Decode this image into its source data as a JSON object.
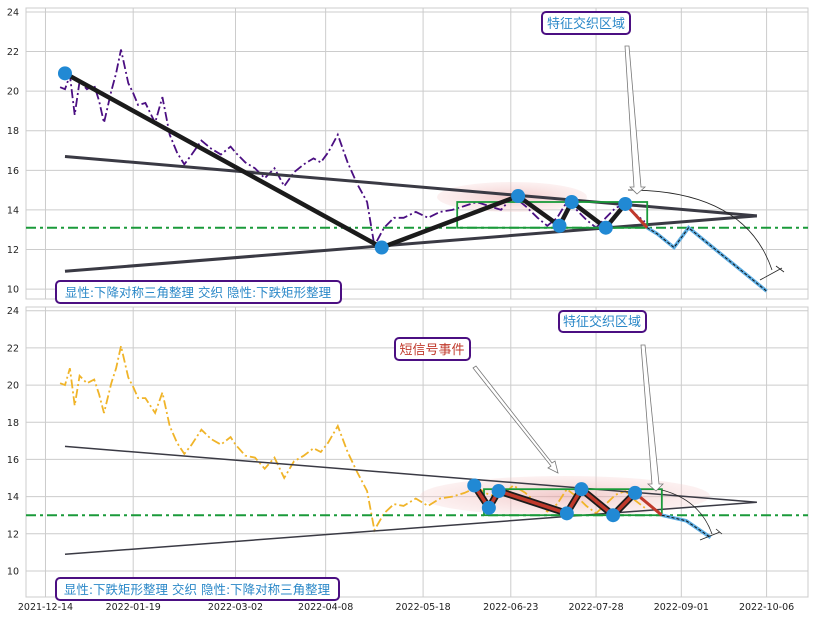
{
  "chart_data": {
    "type": "line",
    "shared_x_ticks": [
      "2021-12-14",
      "2022-01-19",
      "2022-03-02",
      "2022-04-08",
      "2022-05-18",
      "2022-06-23",
      "2022-07-28",
      "2022-09-01",
      "2022-10-06"
    ],
    "colors": {
      "grid": "#cccccc",
      "hline": "#1a9a3a",
      "box": "#1a9a3a",
      "pivot": "#2189d4",
      "annotation_text": "#2b88c8",
      "annotation_border": "#4b0f82",
      "signal_text": "#c0392b",
      "top_price": "#4b0f82",
      "bottom_price": "#f0b429"
    },
    "panels": [
      {
        "id": "top",
        "ylim": [
          9.5,
          24.2
        ],
        "y_ticks": [
          10,
          12,
          14,
          16,
          18,
          20,
          22,
          24
        ],
        "price_style": "purple-dashdot",
        "price_series": [
          [
            "2021-12-20",
            20.2
          ],
          [
            "2021-12-22",
            20.1
          ],
          [
            "2021-12-24",
            20.8
          ],
          [
            "2021-12-26",
            18.8
          ],
          [
            "2021-12-28",
            20.5
          ],
          [
            "2021-12-31",
            20.1
          ],
          [
            "2022-01-03",
            20.3
          ],
          [
            "2022-01-05",
            19.5
          ],
          [
            "2022-01-07",
            18.4
          ],
          [
            "2022-01-10",
            20.0
          ],
          [
            "2022-01-12",
            20.9
          ],
          [
            "2022-01-14",
            22.1
          ],
          [
            "2022-01-17",
            20.4
          ],
          [
            "2022-01-19",
            19.9
          ],
          [
            "2022-01-21",
            19.3
          ],
          [
            "2022-01-24",
            19.4
          ],
          [
            "2022-01-26",
            18.9
          ],
          [
            "2022-01-28",
            18.4
          ],
          [
            "2022-01-31",
            19.7
          ],
          [
            "2022-02-03",
            17.8
          ],
          [
            "2022-02-06",
            16.9
          ],
          [
            "2022-02-09",
            16.3
          ],
          [
            "2022-02-12",
            16.8
          ],
          [
            "2022-02-16",
            17.5
          ],
          [
            "2022-02-20",
            17.1
          ],
          [
            "2022-02-24",
            16.8
          ],
          [
            "2022-02-28",
            17.2
          ],
          [
            "2022-03-02",
            16.9
          ],
          [
            "2022-03-06",
            16.4
          ],
          [
            "2022-03-10",
            16.1
          ],
          [
            "2022-03-14",
            15.6
          ],
          [
            "2022-03-18",
            16.1
          ],
          [
            "2022-03-22",
            15.2
          ],
          [
            "2022-03-26",
            15.9
          ],
          [
            "2022-03-30",
            16.3
          ],
          [
            "2022-04-03",
            16.6
          ],
          [
            "2022-04-06",
            16.4
          ],
          [
            "2022-04-09",
            16.9
          ],
          [
            "2022-04-13",
            17.8
          ],
          [
            "2022-04-17",
            16.4
          ],
          [
            "2022-04-21",
            15.3
          ],
          [
            "2022-04-25",
            14.4
          ],
          [
            "2022-04-28",
            12.2
          ],
          [
            "2022-05-02",
            13.1
          ],
          [
            "2022-05-06",
            13.6
          ],
          [
            "2022-05-10",
            13.6
          ],
          [
            "2022-05-15",
            13.9
          ],
          [
            "2022-05-20",
            13.6
          ],
          [
            "2022-05-25",
            13.9
          ],
          [
            "2022-05-30",
            14.0
          ],
          [
            "2022-06-04",
            14.2
          ],
          [
            "2022-06-09",
            14.4
          ],
          [
            "2022-06-14",
            14.2
          ],
          [
            "2022-06-19",
            14.0
          ],
          [
            "2022-06-24",
            14.7
          ],
          [
            "2022-06-29",
            14.2
          ],
          [
            "2022-07-04",
            13.6
          ],
          [
            "2022-07-08",
            13.2
          ],
          [
            "2022-07-12",
            13.6
          ],
          [
            "2022-07-16",
            14.4
          ],
          [
            "2022-07-20",
            14.0
          ],
          [
            "2022-07-24",
            13.5
          ],
          [
            "2022-07-28",
            13.1
          ],
          [
            "2022-08-01",
            13.6
          ],
          [
            "2022-08-05",
            14.1
          ],
          [
            "2022-08-09",
            14.3
          ],
          [
            "2022-08-13",
            13.8
          ],
          [
            "2022-08-17",
            13.4
          ]
        ],
        "upper_trendline": [
          [
            "2021-12-22",
            16.7
          ],
          [
            "2022-10-02",
            13.7
          ]
        ],
        "lower_trendline": [
          [
            "2021-12-22",
            10.9
          ],
          [
            "2022-10-02",
            13.7
          ]
        ],
        "horizontal_line": 13.1,
        "zigzag": [
          [
            "2021-12-22",
            20.9
          ],
          [
            "2022-05-01",
            12.1
          ],
          [
            "2022-06-26",
            14.7
          ],
          [
            "2022-07-13",
            13.2
          ],
          [
            "2022-07-18",
            14.4
          ],
          [
            "2022-08-01",
            13.1
          ],
          [
            "2022-08-09",
            14.3
          ]
        ],
        "box": {
          "x0": "2022-06-01",
          "x1": "2022-08-18",
          "y0": 13.1,
          "y1": 14.4
        },
        "highlight_segment": [
          [
            "2022-08-09",
            14.3
          ],
          [
            "2022-08-18",
            13.1
          ]
        ],
        "projection": [
          [
            "2022-08-18",
            13.1
          ],
          [
            "2022-08-22",
            12.8
          ],
          [
            "2022-08-29",
            12.1
          ],
          [
            "2022-09-04",
            13.1
          ],
          [
            "2022-10-06",
            9.9
          ]
        ],
        "annotations": [
          {
            "text": "显性:下降对称三角整理 交织 隐性:下跌矩形整理",
            "position": "bottom-left"
          },
          {
            "text": "特征交织区域",
            "position": "top-right"
          }
        ]
      },
      {
        "id": "bottom",
        "ylim": [
          8.6,
          24.2
        ],
        "y_ticks": [
          10,
          12,
          14,
          16,
          18,
          20,
          22,
          24
        ],
        "price_style": "yellow-dashdot",
        "price_series": [
          [
            "2021-12-20",
            20.1
          ],
          [
            "2021-12-22",
            20.0
          ],
          [
            "2021-12-24",
            20.9
          ],
          [
            "2021-12-26",
            18.9
          ],
          [
            "2021-12-28",
            20.5
          ],
          [
            "2021-12-31",
            20.1
          ],
          [
            "2022-01-03",
            20.3
          ],
          [
            "2022-01-05",
            19.5
          ],
          [
            "2022-01-07",
            18.5
          ],
          [
            "2022-01-10",
            20.1
          ],
          [
            "2022-01-12",
            20.9
          ],
          [
            "2022-01-14",
            22.1
          ],
          [
            "2022-01-17",
            20.4
          ],
          [
            "2022-01-19",
            19.9
          ],
          [
            "2022-01-21",
            19.3
          ],
          [
            "2022-01-24",
            19.3
          ],
          [
            "2022-01-26",
            18.9
          ],
          [
            "2022-01-28",
            18.5
          ],
          [
            "2022-01-31",
            19.6
          ],
          [
            "2022-02-03",
            17.8
          ],
          [
            "2022-02-06",
            16.9
          ],
          [
            "2022-02-09",
            16.3
          ],
          [
            "2022-02-12",
            16.8
          ],
          [
            "2022-02-16",
            17.6
          ],
          [
            "2022-02-20",
            17.1
          ],
          [
            "2022-02-24",
            16.8
          ],
          [
            "2022-02-28",
            17.2
          ],
          [
            "2022-03-02",
            16.8
          ],
          [
            "2022-03-06",
            16.2
          ],
          [
            "2022-03-10",
            16.1
          ],
          [
            "2022-03-14",
            15.5
          ],
          [
            "2022-03-18",
            16.1
          ],
          [
            "2022-03-22",
            15.0
          ],
          [
            "2022-03-26",
            15.9
          ],
          [
            "2022-03-30",
            16.2
          ],
          [
            "2022-04-03",
            16.6
          ],
          [
            "2022-04-06",
            16.4
          ],
          [
            "2022-04-09",
            16.9
          ],
          [
            "2022-04-13",
            17.8
          ],
          [
            "2022-04-17",
            16.4
          ],
          [
            "2022-04-21",
            15.3
          ],
          [
            "2022-04-25",
            14.3
          ],
          [
            "2022-04-28",
            12.2
          ],
          [
            "2022-05-02",
            13.1
          ],
          [
            "2022-05-06",
            13.6
          ],
          [
            "2022-05-10",
            13.5
          ],
          [
            "2022-05-15",
            13.9
          ],
          [
            "2022-05-20",
            13.5
          ],
          [
            "2022-05-25",
            13.9
          ],
          [
            "2022-05-30",
            14.0
          ],
          [
            "2022-06-04",
            14.2
          ],
          [
            "2022-06-09",
            14.5
          ],
          [
            "2022-06-14",
            14.1
          ],
          [
            "2022-06-19",
            14.0
          ],
          [
            "2022-06-24",
            14.6
          ],
          [
            "2022-06-29",
            14.2
          ],
          [
            "2022-07-04",
            13.6
          ],
          [
            "2022-07-08",
            13.2
          ],
          [
            "2022-07-12",
            13.6
          ],
          [
            "2022-07-16",
            14.4
          ],
          [
            "2022-07-20",
            14.0
          ],
          [
            "2022-07-24",
            13.5
          ],
          [
            "2022-07-28",
            13.1
          ],
          [
            "2022-08-01",
            13.6
          ],
          [
            "2022-08-05",
            14.1
          ],
          [
            "2022-08-09",
            14.3
          ],
          [
            "2022-08-13",
            13.8
          ],
          [
            "2022-08-17",
            13.4
          ]
        ],
        "upper_trendline": [
          [
            "2021-12-22",
            16.7
          ],
          [
            "2022-10-02",
            13.7
          ]
        ],
        "lower_trendline": [
          [
            "2021-12-22",
            10.9
          ],
          [
            "2022-10-02",
            13.7
          ]
        ],
        "horizontal_line": 13.0,
        "zigzag": [
          [
            "2022-06-08",
            14.6
          ],
          [
            "2022-06-14",
            13.4
          ],
          [
            "2022-06-18",
            14.3
          ],
          [
            "2022-07-16",
            13.1
          ],
          [
            "2022-07-22",
            14.4
          ],
          [
            "2022-08-04",
            13.0
          ],
          [
            "2022-08-13",
            14.2
          ]
        ],
        "box": {
          "x0": "2022-06-12",
          "x1": "2022-08-24",
          "y0": 13.0,
          "y1": 14.4
        },
        "highlight_segment": [
          [
            "2022-08-13",
            14.2
          ],
          [
            "2022-08-24",
            13.0
          ]
        ],
        "projection": [
          [
            "2022-08-24",
            13.0
          ],
          [
            "2022-09-03",
            12.7
          ],
          [
            "2022-09-13",
            11.8
          ]
        ],
        "annotations": [
          {
            "text": "显性:下跌矩形整理 交织 隐性:下降对称三角整理",
            "position": "bottom-left"
          },
          {
            "text": "特征交织区域",
            "position": "top-right"
          },
          {
            "text": "短信号事件",
            "position": "top-middle"
          }
        ]
      }
    ]
  }
}
